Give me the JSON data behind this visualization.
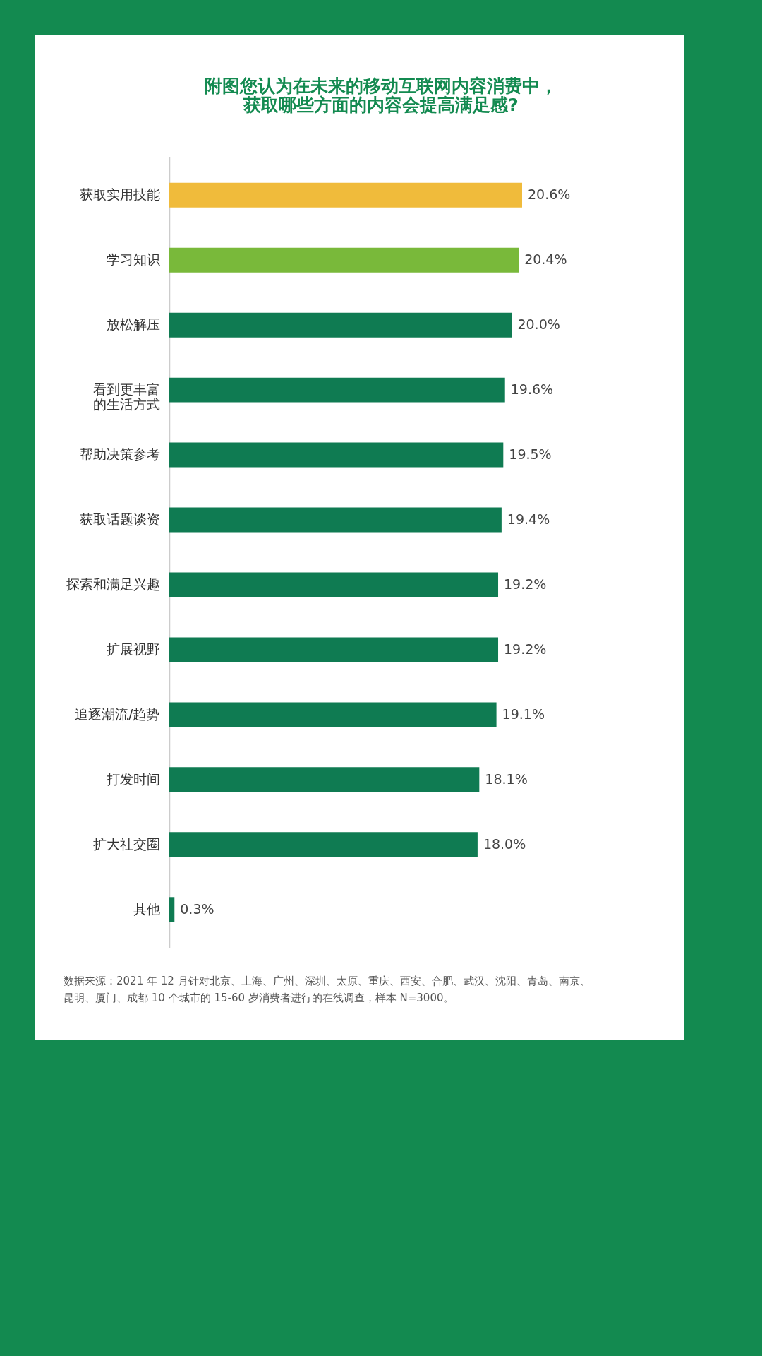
{
  "chart_data": {
    "type": "bar",
    "orientation": "horizontal",
    "title": "附图您认为在未来的移动互联网内容消费中，获取哪些方面的内容会提高满足感?",
    "categories": [
      "获取实用技能",
      "学习知识",
      "放松解压",
      "看到更丰富的生活方式",
      "帮助决策参考",
      "获取话题谈资",
      "探索和满足兴趣",
      "扩展视野",
      "追逐潮流/趋势",
      "打发时间",
      "扩大社交圈",
      "其他"
    ],
    "values": [
      20.6,
      20.4,
      20.0,
      19.6,
      19.5,
      19.4,
      19.2,
      19.2,
      19.1,
      18.1,
      18.0,
      0.3
    ],
    "value_labels": [
      "20.6%",
      "20.4%",
      "20.0%",
      "19.6%",
      "19.5%",
      "19.4%",
      "19.2%",
      "19.2%",
      "19.1%",
      "18.1%",
      "18.0%",
      "0.3%"
    ],
    "colors": [
      "#f0bb3b",
      "#79b93a",
      "#0f7b52",
      "#0f7b52",
      "#0f7b52",
      "#0f7b52",
      "#0f7b52",
      "#0f7b52",
      "#0f7b52",
      "#0f7b52",
      "#0f7b52",
      "#0f7b52"
    ],
    "grid": false,
    "annotations": [
      "数据来源：2021 年 12 月针对北京、上海、广州、深圳、太原、重庆、西安、合肥、武汉、沈阳、青岛、南京、昆明、厦门、成都 10 个城市的 15-60 岁消费者进行的在线调查，样本 N=3000。"
    ]
  }
}
